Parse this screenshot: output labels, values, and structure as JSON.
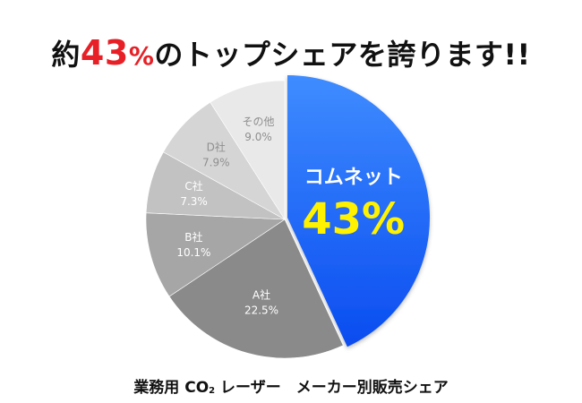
{
  "title": {
    "before": "約",
    "highlight": "43",
    "percent": "%",
    "after": "のトップシェアを誇ります!!"
  },
  "caption": {
    "before": "業務用 CO",
    "subscript": "2",
    "after": " レーザー　メーカー別販売シェア"
  },
  "chart_data": {
    "type": "pie",
    "title": "約43%のトップシェアを誇ります!!",
    "caption": "業務用 CO2 レーザー　メーカー別販売シェア",
    "start_angle_deg": 0,
    "direction": "clockwise",
    "slices": [
      {
        "label": "コムネット",
        "value": 43,
        "value_label": "43%",
        "color": "#1f66ff",
        "highlight": true,
        "highlight_value_color": "#fff200"
      },
      {
        "label": "A社",
        "value": 22.5,
        "value_label": "22.5%",
        "color": "#8a8a8a"
      },
      {
        "label": "B社",
        "value": 10.1,
        "value_label": "10.1%",
        "color": "#a6a6a6"
      },
      {
        "label": "C社",
        "value": 7.3,
        "value_label": "7.3%",
        "color": "#c2c2c2"
      },
      {
        "label": "D社",
        "value": 7.9,
        "value_label": "7.9%",
        "color": "#d5d5d5"
      },
      {
        "label": "その他",
        "value": 9.0,
        "value_label": "9.0%",
        "color": "#e9e9e9"
      }
    ]
  }
}
